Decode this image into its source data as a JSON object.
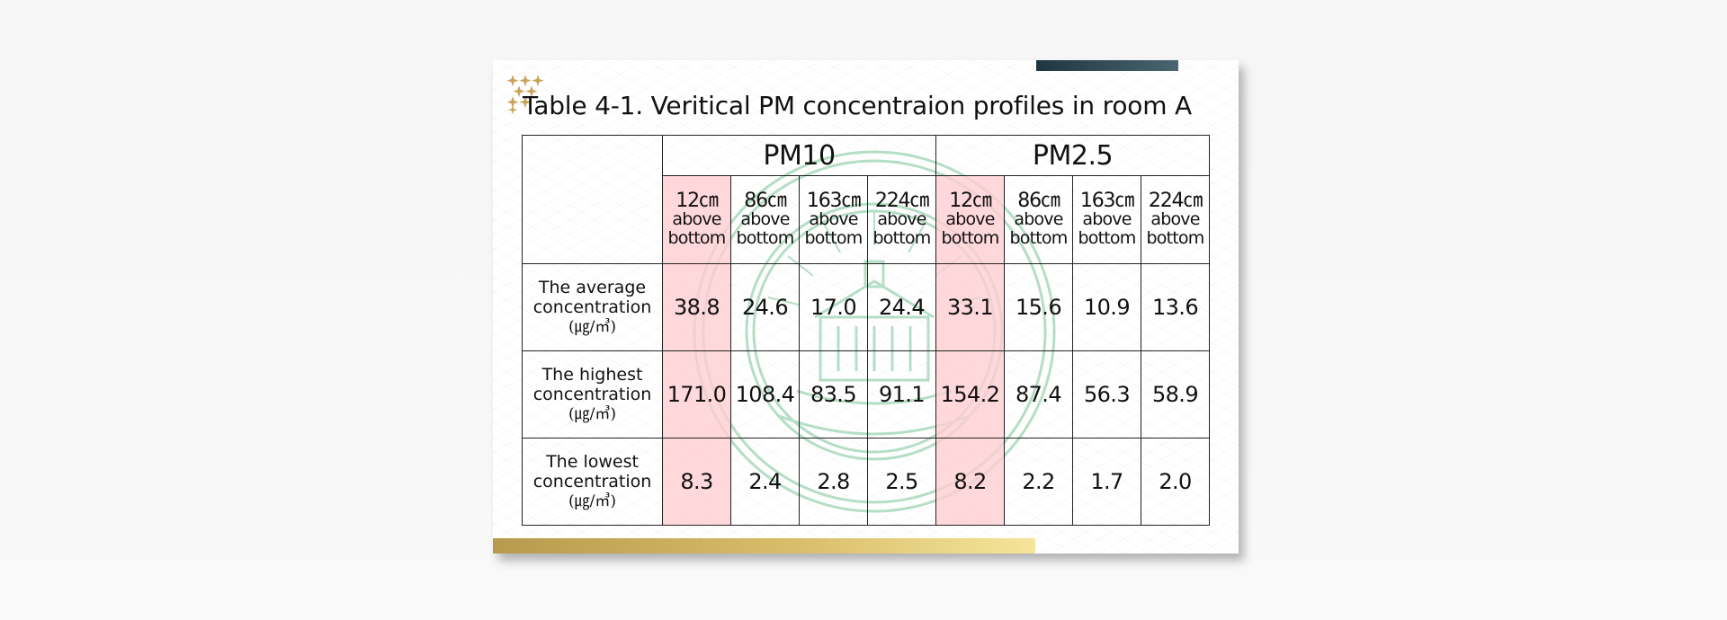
{
  "slide": {
    "title": "Table 4-1. Veritical PM concentraion profiles in room A",
    "colors": {
      "top_bar": "#2f4a55",
      "bottom_bar_start": "#b89a4e",
      "bottom_bar_end": "#f5e59a",
      "highlight_column": "#ffd6d9",
      "ornament": "#c9a35a",
      "seal": "#a9d9bd"
    },
    "icons": [
      "star-cluster-ornament-icon",
      "university-seal-watermark-icon"
    ]
  },
  "table": {
    "groups": [
      {
        "label": "PM10",
        "columns": [
          {
            "height": "12㎝",
            "line1": "above",
            "line2": "bottom"
          },
          {
            "height": "86㎝",
            "line1": "above",
            "line2": "bottom"
          },
          {
            "height": "163㎝",
            "line1": "above",
            "line2": "bottom"
          },
          {
            "height": "224㎝",
            "line1": "above",
            "line2": "bottom"
          }
        ]
      },
      {
        "label": "PM2.5",
        "columns": [
          {
            "height": "12㎝",
            "line1": "above",
            "line2": "bottom"
          },
          {
            "height": "86㎝",
            "line1": "above",
            "line2": "bottom"
          },
          {
            "height": "163㎝",
            "line1": "above",
            "line2": "bottom"
          },
          {
            "height": "224㎝",
            "line1": "above",
            "line2": "bottom"
          }
        ]
      }
    ],
    "rows": [
      {
        "line1": "The average",
        "line2": "concentration",
        "unit": "(㎍/㎥)",
        "values": [
          "38.8",
          "24.6",
          "17.0",
          "24.4",
          "33.1",
          "15.6",
          "10.9",
          "13.6"
        ]
      },
      {
        "line1": "The highest",
        "line2": "concentration",
        "unit": "(㎍/㎥)",
        "values": [
          "171.0",
          "108.4",
          "83.5",
          "91.1",
          "154.2",
          "87.4",
          "56.3",
          "58.9"
        ]
      },
      {
        "line1": "The lowest",
        "line2": "concentration",
        "unit": "(㎍/㎥)",
        "values": [
          "8.3",
          "2.4",
          "2.8",
          "2.5",
          "8.2",
          "2.2",
          "1.7",
          "2.0"
        ]
      }
    ]
  }
}
